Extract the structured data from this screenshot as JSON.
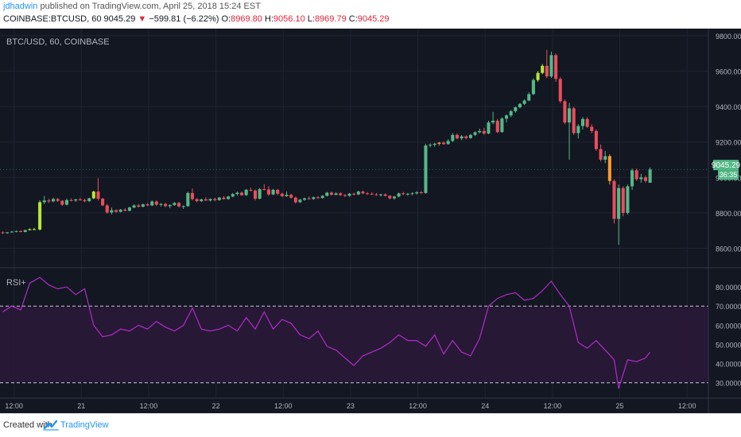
{
  "header": {
    "author": "jdhadwin",
    "publish_text": "published on TradingView.com, April 25, 2018 15:24 EST"
  },
  "quote": {
    "symbol": "COINBASE:BTCUSD, 60",
    "last": "9045.29",
    "arrow": "▼",
    "change": "−599.81 (−6.22%)",
    "o_label": "O:",
    "o_value": "8969.80",
    "h_label": "H:",
    "h_value": "9056.10",
    "l_label": "L:",
    "l_value": "8969.79",
    "c_label": "C:",
    "c_value": "9045.29"
  },
  "main_pane": {
    "legend": "BTC/USD, 60, COINBASE",
    "price_label": "9045.29",
    "countdown": "36:35"
  },
  "rsi_pane": {
    "legend": "RSI+"
  },
  "footer": {
    "created": "Created with",
    "brand": "TradingView"
  },
  "colors": {
    "background": "#131722",
    "grid": "#1f2433",
    "up": "#53b987",
    "down": "#eb4d5c",
    "lime": "#b4e838",
    "orange": "#ff9a2e",
    "rsi_line": "#b12cc8",
    "rsi_fill": "#2a1838",
    "text": "#b2b5be",
    "price_label": "#53b987"
  },
  "chart_data": [
    {
      "type": "candlestick",
      "price_axis": {
        "ticks": [
          8600,
          8800,
          9000,
          9200,
          9400,
          9600,
          9800
        ],
        "tick_labels": [
          "8600.00",
          "8800.00",
          "9000.00",
          "9200.00",
          "9400.00",
          "9600.00",
          "9800.00"
        ],
        "ylim": [
          8490,
          9840
        ]
      },
      "time_axis": {
        "tick_labels": [
          "12:00",
          "21",
          "12:00",
          "22",
          "12:00",
          "23",
          "12:00",
          "24",
          "12:00",
          "25",
          "12:00"
        ],
        "tick_hours": [
          12,
          24,
          36,
          48,
          60,
          72,
          84,
          96,
          108,
          120,
          132
        ],
        "xlim": [
          9.5,
          135.8
        ]
      },
      "candles": [
        [
          10.0,
          8690,
          8695,
          8680,
          8688
        ],
        [
          10.8,
          8688,
          8692,
          8682,
          8690
        ],
        [
          11.6,
          8690,
          8698,
          8688,
          8694
        ],
        [
          12.4,
          8694,
          8700,
          8690,
          8697
        ],
        [
          13.2,
          8697,
          8702,
          8690,
          8692
        ],
        [
          14.0,
          8692,
          8705,
          8690,
          8703
        ],
        [
          14.8,
          8703,
          8712,
          8700,
          8708
        ],
        [
          15.6,
          8708,
          8715,
          8702,
          8706
        ],
        [
          16.6,
          8706,
          8870,
          8700,
          8860
        ],
        [
          17.4,
          8860,
          8895,
          8850,
          8870
        ],
        [
          18.2,
          8870,
          8880,
          8855,
          8865
        ],
        [
          19.0,
          8865,
          8885,
          8860,
          8878
        ],
        [
          19.8,
          8878,
          8884,
          8862,
          8868
        ],
        [
          20.6,
          8868,
          8872,
          8840,
          8846
        ],
        [
          21.4,
          8846,
          8880,
          8842,
          8872
        ],
        [
          22.2,
          8872,
          8882,
          8865,
          8870
        ],
        [
          23.0,
          8870,
          8880,
          8862,
          8876
        ],
        [
          23.8,
          8876,
          8885,
          8868,
          8872
        ],
        [
          24.6,
          8872,
          8880,
          8860,
          8866
        ],
        [
          25.4,
          8866,
          8885,
          8862,
          8882
        ],
        [
          26.2,
          8882,
          8925,
          8878,
          8920
        ],
        [
          27.0,
          8920,
          8995,
          8870,
          8880
        ],
        [
          27.8,
          8880,
          8885,
          8838,
          8842
        ],
        [
          28.6,
          8842,
          8850,
          8795,
          8802
        ],
        [
          29.4,
          8802,
          8830,
          8792,
          8815
        ],
        [
          30.2,
          8815,
          8820,
          8800,
          8806
        ],
        [
          31.0,
          8806,
          8822,
          8802,
          8818
        ],
        [
          31.8,
          8818,
          8826,
          8808,
          8812
        ],
        [
          32.6,
          8812,
          8835,
          8808,
          8830
        ],
        [
          33.4,
          8830,
          8848,
          8826,
          8842
        ],
        [
          34.2,
          8842,
          8850,
          8830,
          8835
        ],
        [
          35.0,
          8835,
          8852,
          8830,
          8848
        ],
        [
          35.8,
          8848,
          8856,
          8838,
          8842
        ],
        [
          36.6,
          8842,
          8870,
          8838,
          8864
        ],
        [
          37.4,
          8864,
          8870,
          8840,
          8846
        ],
        [
          38.2,
          8846,
          8855,
          8836,
          8850
        ],
        [
          39.0,
          8850,
          8856,
          8832,
          8838
        ],
        [
          39.8,
          8838,
          8848,
          8826,
          8844
        ],
        [
          40.6,
          8844,
          8860,
          8840,
          8856
        ],
        [
          41.4,
          8856,
          8862,
          8830,
          8836
        ],
        [
          42.2,
          8836,
          8842,
          8822,
          8838
        ],
        [
          43.0,
          8838,
          8920,
          8834,
          8912
        ],
        [
          43.8,
          8912,
          8938,
          8870,
          8878
        ],
        [
          44.6,
          8878,
          8882,
          8860,
          8866
        ],
        [
          45.4,
          8866,
          8880,
          8862,
          8876
        ],
        [
          46.2,
          8876,
          8888,
          8866,
          8870
        ],
        [
          47.0,
          8870,
          8882,
          8864,
          8878
        ],
        [
          47.8,
          8878,
          8885,
          8866,
          8872
        ],
        [
          48.6,
          8872,
          8890,
          8868,
          8886
        ],
        [
          49.4,
          8886,
          8894,
          8874,
          8878
        ],
        [
          50.2,
          8878,
          8896,
          8874,
          8892
        ],
        [
          51.0,
          8892,
          8912,
          8888,
          8906
        ],
        [
          51.8,
          8906,
          8920,
          8898,
          8914
        ],
        [
          52.6,
          8914,
          8920,
          8896,
          8900
        ],
        [
          53.4,
          8900,
          8935,
          8896,
          8930
        ],
        [
          54.2,
          8930,
          8942,
          8920,
          8926
        ],
        [
          55.0,
          8926,
          8932,
          8870,
          8880
        ],
        [
          55.8,
          8880,
          8940,
          8876,
          8934
        ],
        [
          56.6,
          8934,
          8962,
          8926,
          8932
        ],
        [
          57.4,
          8932,
          8950,
          8896,
          8904
        ],
        [
          58.2,
          8904,
          8935,
          8900,
          8930
        ],
        [
          59.0,
          8930,
          8935,
          8900,
          8908
        ],
        [
          59.8,
          8908,
          8914,
          8888,
          8894
        ],
        [
          60.6,
          8894,
          8920,
          8890,
          8902
        ],
        [
          61.4,
          8902,
          8908,
          8880,
          8886
        ],
        [
          62.2,
          8886,
          8892,
          8852,
          8860
        ],
        [
          63.0,
          8860,
          8880,
          8856,
          8874
        ],
        [
          63.8,
          8874,
          8886,
          8868,
          8882
        ],
        [
          64.6,
          8882,
          8892,
          8874,
          8878
        ],
        [
          65.4,
          8878,
          8892,
          8874,
          8888
        ],
        [
          66.2,
          8888,
          8894,
          8878,
          8884
        ],
        [
          67.0,
          8884,
          8900,
          8880,
          8896
        ],
        [
          67.8,
          8896,
          8918,
          8892,
          8914
        ],
        [
          68.6,
          8914,
          8920,
          8898,
          8902
        ],
        [
          69.4,
          8902,
          8916,
          8898,
          8910
        ],
        [
          70.2,
          8910,
          8916,
          8896,
          8900
        ],
        [
          71.0,
          8900,
          8906,
          8890,
          8896
        ],
        [
          71.8,
          8896,
          8912,
          8892,
          8908
        ],
        [
          72.6,
          8908,
          8914,
          8898,
          8904
        ],
        [
          73.4,
          8904,
          8925,
          8900,
          8920
        ],
        [
          74.2,
          8920,
          8926,
          8906,
          8910
        ],
        [
          75.0,
          8910,
          8918,
          8902,
          8908
        ],
        [
          75.8,
          8908,
          8916,
          8900,
          8904
        ],
        [
          76.6,
          8904,
          8912,
          8896,
          8900
        ],
        [
          77.4,
          8900,
          8908,
          8892,
          8904
        ],
        [
          78.2,
          8904,
          8910,
          8892,
          8896
        ],
        [
          79.0,
          8896,
          8900,
          8876,
          8882
        ],
        [
          79.8,
          8882,
          8896,
          8874,
          8892
        ],
        [
          80.6,
          8892,
          8914,
          8888,
          8910
        ],
        [
          81.4,
          8910,
          8918,
          8900,
          8906
        ],
        [
          82.2,
          8906,
          8912,
          8896,
          8908
        ],
        [
          83.0,
          8908,
          8916,
          8900,
          8910
        ],
        [
          83.8,
          8910,
          8922,
          8904,
          8916
        ],
        [
          84.6,
          8916,
          8924,
          8906,
          8912
        ],
        [
          85.4,
          8912,
          9190,
          8908,
          9180
        ],
        [
          86.2,
          9180,
          9192,
          9170,
          9184
        ],
        [
          87.0,
          9184,
          9196,
          9174,
          9190
        ],
        [
          87.8,
          9190,
          9200,
          9180,
          9196
        ],
        [
          88.6,
          9196,
          9204,
          9184,
          9188
        ],
        [
          89.4,
          9188,
          9215,
          9185,
          9206
        ],
        [
          90.2,
          9206,
          9250,
          9200,
          9240
        ],
        [
          91.0,
          9240,
          9248,
          9215,
          9220
        ],
        [
          91.8,
          9220,
          9240,
          9210,
          9232
        ],
        [
          92.6,
          9232,
          9238,
          9215,
          9222
        ],
        [
          93.4,
          9222,
          9245,
          9218,
          9240
        ],
        [
          94.2,
          9240,
          9260,
          9234,
          9255
        ],
        [
          95.0,
          9255,
          9275,
          9248,
          9262
        ],
        [
          95.8,
          9262,
          9280,
          9240,
          9248
        ],
        [
          96.6,
          9248,
          9320,
          9244,
          9310
        ],
        [
          97.4,
          9310,
          9370,
          9300,
          9320
        ],
        [
          98.2,
          9320,
          9330,
          9250,
          9256
        ],
        [
          99.0,
          9256,
          9340,
          9252,
          9332
        ],
        [
          99.8,
          9332,
          9355,
          9310,
          9350
        ],
        [
          100.6,
          9350,
          9380,
          9340,
          9374
        ],
        [
          101.4,
          9374,
          9400,
          9365,
          9396
        ],
        [
          102.2,
          9396,
          9420,
          9390,
          9415
        ],
        [
          103.0,
          9415,
          9440,
          9408,
          9434
        ],
        [
          103.8,
          9434,
          9480,
          9430,
          9470
        ],
        [
          104.6,
          9470,
          9560,
          9465,
          9550
        ],
        [
          105.4,
          9550,
          9600,
          9540,
          9590
        ],
        [
          106.2,
          9590,
          9640,
          9582,
          9630
        ],
        [
          107.0,
          9630,
          9720,
          9560,
          9570
        ],
        [
          107.8,
          9570,
          9710,
          9562,
          9690
        ],
        [
          108.6,
          9690,
          9700,
          9540,
          9556
        ],
        [
          109.4,
          9556,
          9565,
          9420,
          9430
        ],
        [
          110.2,
          9430,
          9440,
          9300,
          9310
        ],
        [
          111.0,
          9310,
          9420,
          9100,
          9390
        ],
        [
          111.8,
          9390,
          9398,
          9240,
          9250
        ],
        [
          112.6,
          9250,
          9300,
          9220,
          9290
        ],
        [
          113.4,
          9290,
          9340,
          9270,
          9330
        ],
        [
          114.2,
          9330,
          9340,
          9280,
          9286
        ],
        [
          115.0,
          9286,
          9300,
          9250,
          9262
        ],
        [
          115.8,
          9262,
          9270,
          9150,
          9160
        ],
        [
          116.6,
          9160,
          9185,
          9090,
          9100
        ],
        [
          117.4,
          9100,
          9150,
          9080,
          9120
        ],
        [
          118.2,
          9120,
          9130,
          8960,
          8980
        ],
        [
          119.0,
          8980,
          8990,
          8740,
          8766
        ],
        [
          119.8,
          8766,
          8960,
          8620,
          8940
        ],
        [
          120.6,
          8940,
          8950,
          8780,
          8800
        ],
        [
          121.4,
          8800,
          8960,
          8790,
          8950
        ],
        [
          122.2,
          8950,
          9050,
          8930,
          9040
        ],
        [
          123.0,
          9040,
          9050,
          8980,
          8990
        ],
        [
          123.8,
          8990,
          9020,
          8970,
          9000
        ],
        [
          124.6,
          9000,
          9010,
          8970,
          8980
        ],
        [
          125.4,
          8969.8,
          9056.1,
          8969.79,
          9045.29
        ]
      ],
      "yellow_candles": [
        14.8,
        15.6,
        16.6,
        26.2,
        105.4,
        106.2
      ],
      "orange_candles": [
        87.8,
        118.2
      ],
      "last_price": 9045.29
    },
    {
      "type": "line",
      "name": "RSI",
      "ylim": [
        22,
        90
      ],
      "ticks": [
        30,
        40,
        50,
        60,
        70,
        80
      ],
      "tick_labels": [
        "30.0000",
        "40.0000",
        "50.0000",
        "60.0000",
        "70.0000",
        "80.0000"
      ],
      "overbought": 70,
      "oversold": 30,
      "x": [
        10.0,
        11.6,
        13.2,
        14.8,
        16.6,
        18.2,
        19.8,
        21.4,
        23.0,
        24.6,
        26.2,
        27.8,
        29.4,
        31.0,
        32.6,
        34.2,
        35.8,
        37.4,
        39.0,
        40.6,
        42.2,
        43.8,
        45.4,
        47.0,
        48.6,
        50.2,
        51.8,
        53.4,
        55.0,
        56.6,
        58.2,
        59.8,
        61.4,
        63.0,
        64.6,
        66.2,
        67.8,
        69.4,
        71.0,
        72.6,
        74.2,
        75.8,
        77.4,
        79.0,
        80.6,
        82.2,
        83.8,
        85.4,
        87.0,
        88.6,
        90.2,
        91.8,
        93.4,
        95.0,
        96.6,
        98.2,
        99.8,
        101.4,
        103.0,
        104.6,
        106.2,
        107.8,
        109.4,
        111.0,
        112.6,
        114.2,
        115.8,
        117.4,
        119.0,
        119.8,
        121.4,
        123.0,
        124.6,
        125.4
      ],
      "y": [
        67,
        70,
        68,
        82,
        85,
        81,
        79,
        80,
        76,
        79,
        60,
        54,
        55,
        58,
        57,
        60,
        58,
        62,
        59,
        57,
        60,
        69,
        58,
        57,
        58,
        60,
        57,
        64,
        58,
        67,
        58,
        63,
        61,
        55,
        53,
        57,
        49,
        47,
        43,
        39,
        44,
        46,
        48,
        51,
        55,
        52,
        52,
        49,
        55,
        45,
        52,
        46,
        44,
        53,
        70,
        74,
        76,
        77,
        73,
        74,
        78,
        83,
        76,
        70,
        51,
        48,
        52,
        47,
        42,
        27,
        42,
        41,
        43,
        46
      ]
    }
  ]
}
